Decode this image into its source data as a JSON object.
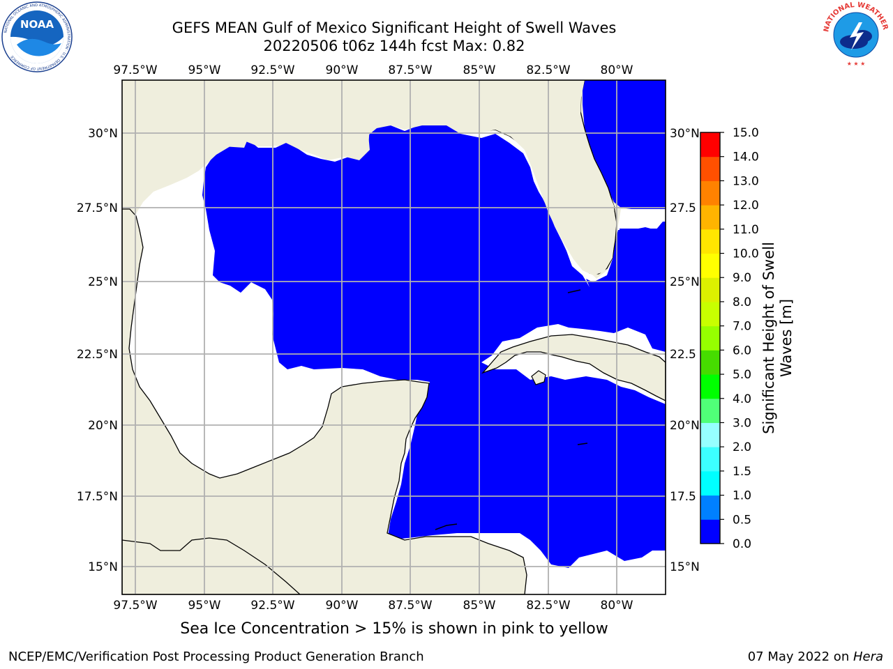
{
  "title_line1": "GEFS MEAN Gulf of Mexico Significant Height of Swell Waves",
  "title_line2": "20220506 t06z 144h fcst   Max: 0.82",
  "logos": {
    "noaa": {
      "text": "NOAA",
      "ring_text": "NATIONAL OCEANIC AND ATMOSPHERIC ADMINISTRATION · U.S. DEPARTMENT OF COMMERCE"
    },
    "nws": {
      "ring_text": "NATIONAL WEATHER SERVICE"
    }
  },
  "map": {
    "lon_labels": [
      "97.5°W",
      "95°W",
      "92.5°W",
      "90°W",
      "87.5°W",
      "85°W",
      "82.5°W",
      "80°W"
    ],
    "lat_labels": [
      "15°N",
      "17.5°N",
      "20°N",
      "22.5°N",
      "25°N",
      "27.5°N",
      "30°N"
    ],
    "lat_labels_right": [
      "15°N",
      "17.5",
      "20°N",
      "22.5",
      "25°N",
      "27.5",
      "30°N"
    ],
    "colors": {
      "land": "#efeedd",
      "ocean_low": "#0000ff",
      "ocean_mid": "#0080ff",
      "no_data": "#ffffff",
      "grid": "#b0b0b0"
    }
  },
  "colorbar": {
    "label": "Significant Height of Swell Waves [m]",
    "ticks": [
      "0.0",
      "0.5",
      "1.0",
      "1.5",
      "2.0",
      "3.0",
      "4.0",
      "5.0",
      "6.0",
      "7.0",
      "8.0",
      "9.0",
      "10.0",
      "11.0",
      "12.0",
      "13.0",
      "14.0",
      "15.0"
    ],
    "colors": [
      "#0000ff",
      "#0080ff",
      "#00ffff",
      "#3cffff",
      "#96ffff",
      "#50ff78",
      "#00ff00",
      "#46dc00",
      "#96ff00",
      "#c8ff00",
      "#dcf000",
      "#ffff00",
      "#ffe600",
      "#ffb400",
      "#ff8200",
      "#ff5000",
      "#ff0000"
    ]
  },
  "ice_note": "Sea Ice Concentration > 15% is shown in pink to yellow",
  "footer_left": "NCEP/EMC/Verification Post Processing Product Generation Branch",
  "footer_date": "07 May 2022 on ",
  "footer_host": "Hera"
}
